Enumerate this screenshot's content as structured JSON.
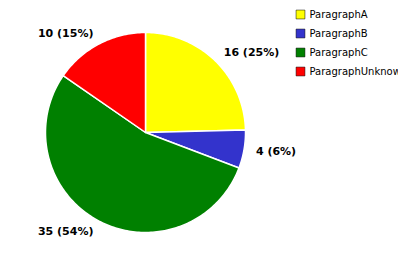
{
  "chart_data": {
    "type": "pie",
    "categories": [
      "ParagraphA",
      "ParagraphB",
      "ParagraphC",
      "ParagraphUnknown"
    ],
    "values": [
      16,
      4,
      35,
      10
    ],
    "value_labels": [
      "16 (25%)",
      "4 (6%)",
      "35 (54%)",
      "10 (15%)"
    ],
    "colors": [
      "#FFFF00",
      "#3333CC",
      "#008000",
      "#FF0000"
    ],
    "data_labels": true,
    "legend": "right"
  }
}
